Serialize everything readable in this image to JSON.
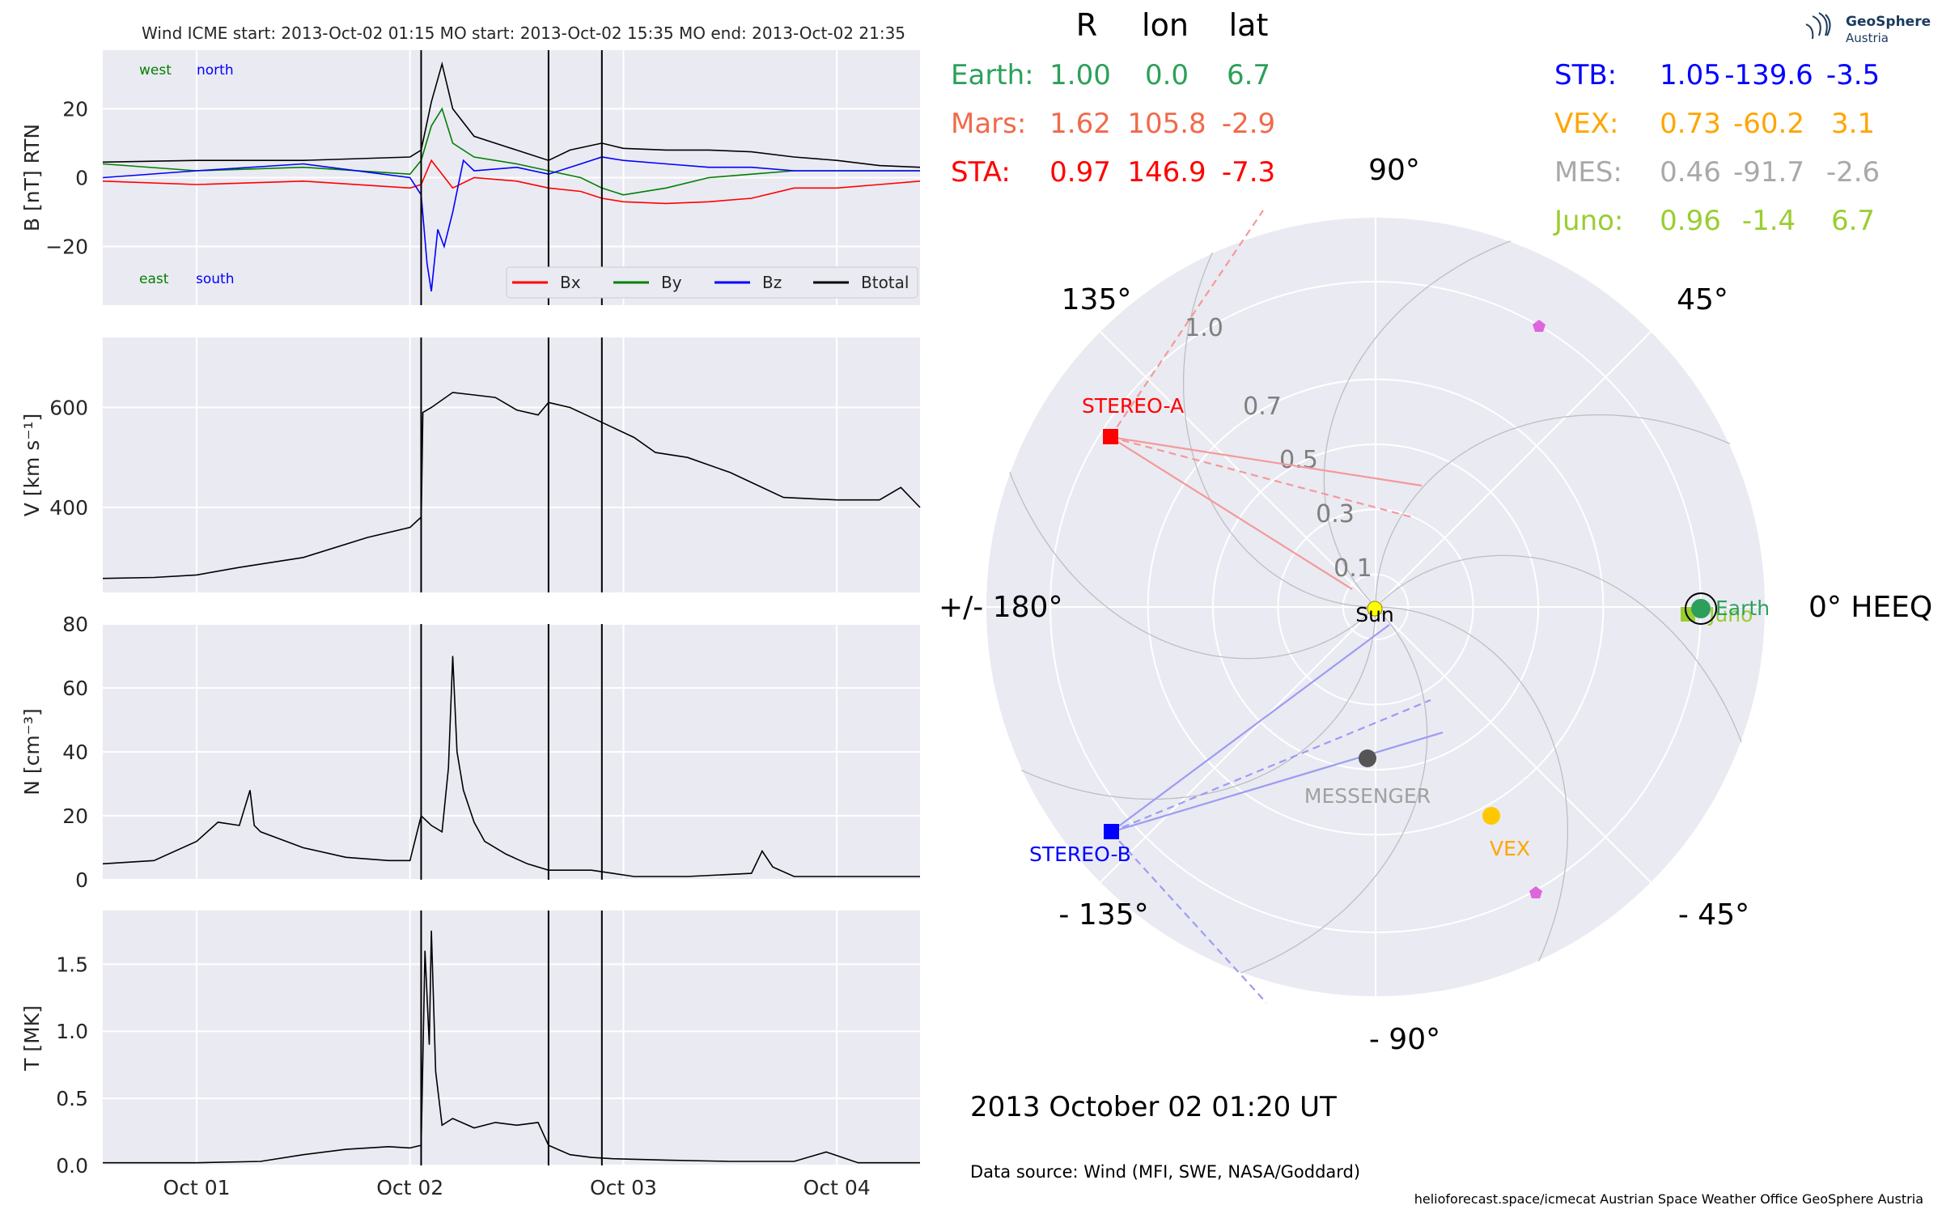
{
  "header": {
    "title": "Wind    ICME start: 2013-Oct-02 01:15   MO start: 2013-Oct-02 15:35   MO end: 2013-Oct-02 21:35"
  },
  "logo": {
    "name": "GeoSphere",
    "sub": "Austria"
  },
  "table": {
    "headers": [
      "R",
      "lon",
      "lat"
    ],
    "left": [
      {
        "name": "Earth:",
        "R": "1.00",
        "lon": "0.0",
        "lat": "6.7",
        "color": "#2ca05a"
      },
      {
        "name": "Mars:",
        "R": "1.62",
        "lon": "105.8",
        "lat": "-2.9",
        "color": "#f06a4a"
      },
      {
        "name": "STA:",
        "R": "0.97",
        "lon": "146.9",
        "lat": "-7.3",
        "color": "#ff0000"
      }
    ],
    "right": [
      {
        "name": "STB:",
        "R": "1.05",
        "lon": "-139.6",
        "lat": "-3.5",
        "color": "#0000ff"
      },
      {
        "name": "VEX:",
        "R": "0.73",
        "lon": "-60.2",
        "lat": "3.1",
        "color": "#ffa500"
      },
      {
        "name": "MES:",
        "R": "0.46",
        "lon": "-91.7",
        "lat": "-2.6",
        "color": "#a9a9a9"
      },
      {
        "name": "Juno:",
        "R": "0.96",
        "lon": "-1.4",
        "lat": "6.7",
        "color": "#9acd32"
      }
    ]
  },
  "polar": {
    "angle_labels": {
      "a90": "90°",
      "a45": "45°",
      "a135": "135°",
      "a180": "+/- 180°",
      "a0": "0° HEEQ",
      "am45": "- 45°",
      "am90": "- 90°",
      "am135": "- 135°"
    },
    "radial_labels": [
      "0.1",
      "0.3",
      "0.5",
      "0.7",
      "1.0"
    ],
    "bodies": {
      "sun": "Sun",
      "earth": "Earth",
      "juno": "Juno",
      "sta": "STEREO-A",
      "stb": "STEREO-B",
      "messenger": "MESSENGER",
      "vex": "VEX"
    },
    "colors": {
      "sun": "#ffff00",
      "earth": "#2ca05a",
      "juno": "#9acd32",
      "sta": "#ff0000",
      "stb": "#0000ff",
      "messenger": "#555555",
      "vex": "#ffc800",
      "mars": "#dd66dd"
    }
  },
  "date_text": "2013 October 02  01:20 UT",
  "source_text": "Data source: Wind (MFI, SWE, NASA/Goddard)",
  "footer": "helioforecast.space/icmecat   Austrian Space Weather Office   GeoSphere Austria",
  "chart_data": [
    {
      "type": "line",
      "name": "magnetic field",
      "ylabel": "B [nT] RTN",
      "ylim": [
        -37,
        37
      ],
      "yticks": [
        -20,
        0,
        20
      ],
      "xticks": [
        "Oct 01",
        "Oct 02",
        "Oct 03",
        "Oct 04"
      ],
      "xdays": [
        0,
        1,
        2,
        3
      ],
      "xlim_days": [
        -0.44,
        3.39
      ],
      "annotations": {
        "west": "west",
        "north": "north",
        "east": "east",
        "south": "south"
      },
      "legend": [
        "Bx",
        "By",
        "Bz",
        "Btotal"
      ],
      "vlines_days": [
        1.052,
        1.649,
        1.899
      ],
      "series": [
        {
          "name": "Btotal",
          "color": "#000000",
          "x": [
            -0.44,
            0.0,
            0.5,
            1.0,
            1.052,
            1.1,
            1.15,
            1.2,
            1.3,
            1.45,
            1.55,
            1.649,
            1.75,
            1.899,
            2.0,
            2.2,
            2.4,
            2.6,
            2.8,
            3.0,
            3.2,
            3.39
          ],
          "y": [
            4.5,
            5,
            5,
            6,
            8,
            22,
            33,
            20,
            12,
            9,
            7,
            5,
            8,
            10,
            8.5,
            8,
            8,
            7.5,
            6,
            5,
            3.5,
            3
          ]
        },
        {
          "name": "Bx",
          "color": "#ff0000",
          "x": [
            -0.44,
            0.0,
            0.5,
            1.0,
            1.052,
            1.1,
            1.2,
            1.3,
            1.5,
            1.649,
            1.8,
            1.899,
            2.0,
            2.2,
            2.4,
            2.6,
            2.8,
            3.0,
            3.2,
            3.39
          ],
          "y": [
            -1,
            -2,
            -1,
            -3,
            -2,
            5,
            -3,
            0,
            -1,
            -3,
            -4,
            -6,
            -7,
            -7.5,
            -7,
            -6,
            -3,
            -3,
            -2,
            -1
          ]
        },
        {
          "name": "By",
          "color": "#008000",
          "x": [
            -0.44,
            0.0,
            0.5,
            1.0,
            1.052,
            1.1,
            1.15,
            1.2,
            1.3,
            1.5,
            1.649,
            1.8,
            1.899,
            2.0,
            2.2,
            2.4,
            2.6,
            2.8,
            3.0,
            3.2,
            3.39
          ],
          "y": [
            4,
            2,
            3,
            1,
            5,
            15,
            20,
            10,
            6,
            4,
            2,
            0,
            -3,
            -5,
            -3,
            0,
            1,
            2,
            2,
            2,
            2
          ]
        },
        {
          "name": "Bz",
          "color": "#0000ff",
          "x": [
            -0.44,
            0.0,
            0.5,
            1.0,
            1.052,
            1.08,
            1.1,
            1.13,
            1.16,
            1.2,
            1.25,
            1.3,
            1.5,
            1.649,
            1.8,
            1.899,
            2.0,
            2.2,
            2.4,
            2.6,
            2.8,
            3.0,
            3.2,
            3.39
          ],
          "y": [
            0,
            2,
            4,
            0,
            -5,
            -25,
            -33,
            -15,
            -20,
            -10,
            5,
            2,
            3,
            1,
            4,
            6,
            5,
            4,
            3,
            3,
            2,
            2,
            2,
            2
          ]
        }
      ]
    },
    {
      "type": "line",
      "name": "speed",
      "ylabel": "V [km s⁻¹]",
      "ylim": [
        230,
        740
      ],
      "yticks": [
        400,
        600
      ],
      "vlines_days": [
        1.052,
        1.649,
        1.899
      ],
      "series": [
        {
          "name": "V",
          "color": "#000000",
          "x": [
            -0.44,
            -0.2,
            0.0,
            0.2,
            0.5,
            0.8,
            1.0,
            1.05,
            1.052,
            1.06,
            1.1,
            1.2,
            1.3,
            1.4,
            1.5,
            1.6,
            1.649,
            1.75,
            1.85,
            1.95,
            2.05,
            2.15,
            2.3,
            2.5,
            2.6,
            2.75,
            3.0,
            3.2,
            3.3,
            3.39
          ],
          "y": [
            258,
            260,
            265,
            280,
            300,
            340,
            360,
            380,
            370,
            590,
            600,
            630,
            625,
            620,
            595,
            585,
            610,
            600,
            580,
            560,
            540,
            510,
            500,
            470,
            450,
            420,
            415,
            415,
            440,
            400
          ]
        }
      ]
    },
    {
      "type": "line",
      "name": "density",
      "ylabel": "N [cm⁻³]",
      "ylim": [
        0,
        80
      ],
      "yticks": [
        0,
        20,
        40,
        60,
        80
      ],
      "vlines_days": [
        1.052,
        1.649,
        1.899
      ],
      "series": [
        {
          "name": "N",
          "color": "#000000",
          "x": [
            -0.44,
            -0.2,
            0.0,
            0.1,
            0.2,
            0.25,
            0.27,
            0.3,
            0.5,
            0.7,
            0.9,
            1.0,
            1.052,
            1.1,
            1.15,
            1.18,
            1.2,
            1.22,
            1.25,
            1.3,
            1.35,
            1.45,
            1.55,
            1.649,
            1.75,
            1.85,
            1.95,
            2.05,
            2.3,
            2.6,
            2.65,
            2.7,
            2.8,
            3.0,
            3.39
          ],
          "y": [
            5,
            6,
            12,
            18,
            17,
            28,
            17,
            15,
            10,
            7,
            6,
            6,
            20,
            17,
            15,
            35,
            70,
            40,
            28,
            18,
            12,
            8,
            5,
            3,
            3,
            3,
            2,
            1,
            1,
            2,
            9,
            4,
            1,
            1,
            1
          ]
        }
      ]
    },
    {
      "type": "line",
      "name": "temperature",
      "ylabel": "T [MK]",
      "ylim": [
        0,
        1.9
      ],
      "yticks": [
        0.0,
        0.5,
        1.0,
        1.5
      ],
      "xticks": [
        "Oct 01",
        "Oct 02",
        "Oct 03",
        "Oct 04"
      ],
      "xdays": [
        0,
        1,
        2,
        3
      ],
      "xlim_days": [
        -0.44,
        3.39
      ],
      "vlines_days": [
        1.052,
        1.649,
        1.899
      ],
      "series": [
        {
          "name": "T",
          "color": "#000000",
          "x": [
            -0.44,
            0.0,
            0.3,
            0.5,
            0.7,
            0.9,
            1.0,
            1.052,
            1.07,
            1.09,
            1.1,
            1.12,
            1.15,
            1.2,
            1.3,
            1.4,
            1.5,
            1.6,
            1.649,
            1.75,
            1.85,
            1.95,
            2.2,
            2.5,
            2.8,
            2.95,
            3.1,
            3.39
          ],
          "y": [
            0.02,
            0.02,
            0.03,
            0.08,
            0.12,
            0.14,
            0.13,
            0.15,
            1.6,
            0.9,
            1.75,
            0.7,
            0.3,
            0.35,
            0.28,
            0.32,
            0.3,
            0.32,
            0.15,
            0.08,
            0.06,
            0.05,
            0.04,
            0.03,
            0.03,
            0.1,
            0.02,
            0.02
          ]
        }
      ]
    }
  ]
}
